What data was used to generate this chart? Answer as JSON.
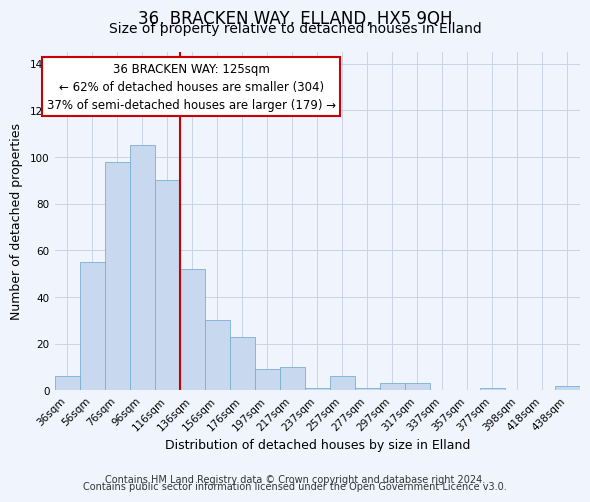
{
  "title": "36, BRACKEN WAY, ELLAND, HX5 9QH",
  "subtitle": "Size of property relative to detached houses in Elland",
  "xlabel": "Distribution of detached houses by size in Elland",
  "ylabel": "Number of detached properties",
  "bar_labels": [
    "36sqm",
    "56sqm",
    "76sqm",
    "96sqm",
    "116sqm",
    "136sqm",
    "156sqm",
    "176sqm",
    "197sqm",
    "217sqm",
    "237sqm",
    "257sqm",
    "277sqm",
    "297sqm",
    "317sqm",
    "337sqm",
    "357sqm",
    "377sqm",
    "398sqm",
    "418sqm",
    "438sqm"
  ],
  "bar_values": [
    6,
    55,
    98,
    105,
    90,
    52,
    30,
    23,
    9,
    10,
    1,
    6,
    1,
    3,
    3,
    0,
    0,
    1,
    0,
    0,
    2
  ],
  "bar_color": "#c8d9ef",
  "bar_edge_color": "#7badd4",
  "vline_color": "#cc0000",
  "annotation_title": "36 BRACKEN WAY: 125sqm",
  "annotation_line1": "← 62% of detached houses are smaller (304)",
  "annotation_line2": "37% of semi-detached houses are larger (179) →",
  "annotation_box_facecolor": "#ffffff",
  "annotation_box_edgecolor": "#cc0000",
  "ylim": [
    0,
    145
  ],
  "yticks": [
    0,
    20,
    40,
    60,
    80,
    100,
    120,
    140
  ],
  "footer1": "Contains HM Land Registry data © Crown copyright and database right 2024.",
  "footer2": "Contains public sector information licensed under the Open Government Licence v3.0.",
  "bg_color": "#f0f4fc",
  "plot_bg_color": "#f0f4fc",
  "grid_color": "#c8d4e8",
  "title_fontsize": 12,
  "subtitle_fontsize": 10,
  "axis_label_fontsize": 9,
  "tick_fontsize": 7.5,
  "annotation_fontsize": 8.5,
  "footer_fontsize": 7
}
